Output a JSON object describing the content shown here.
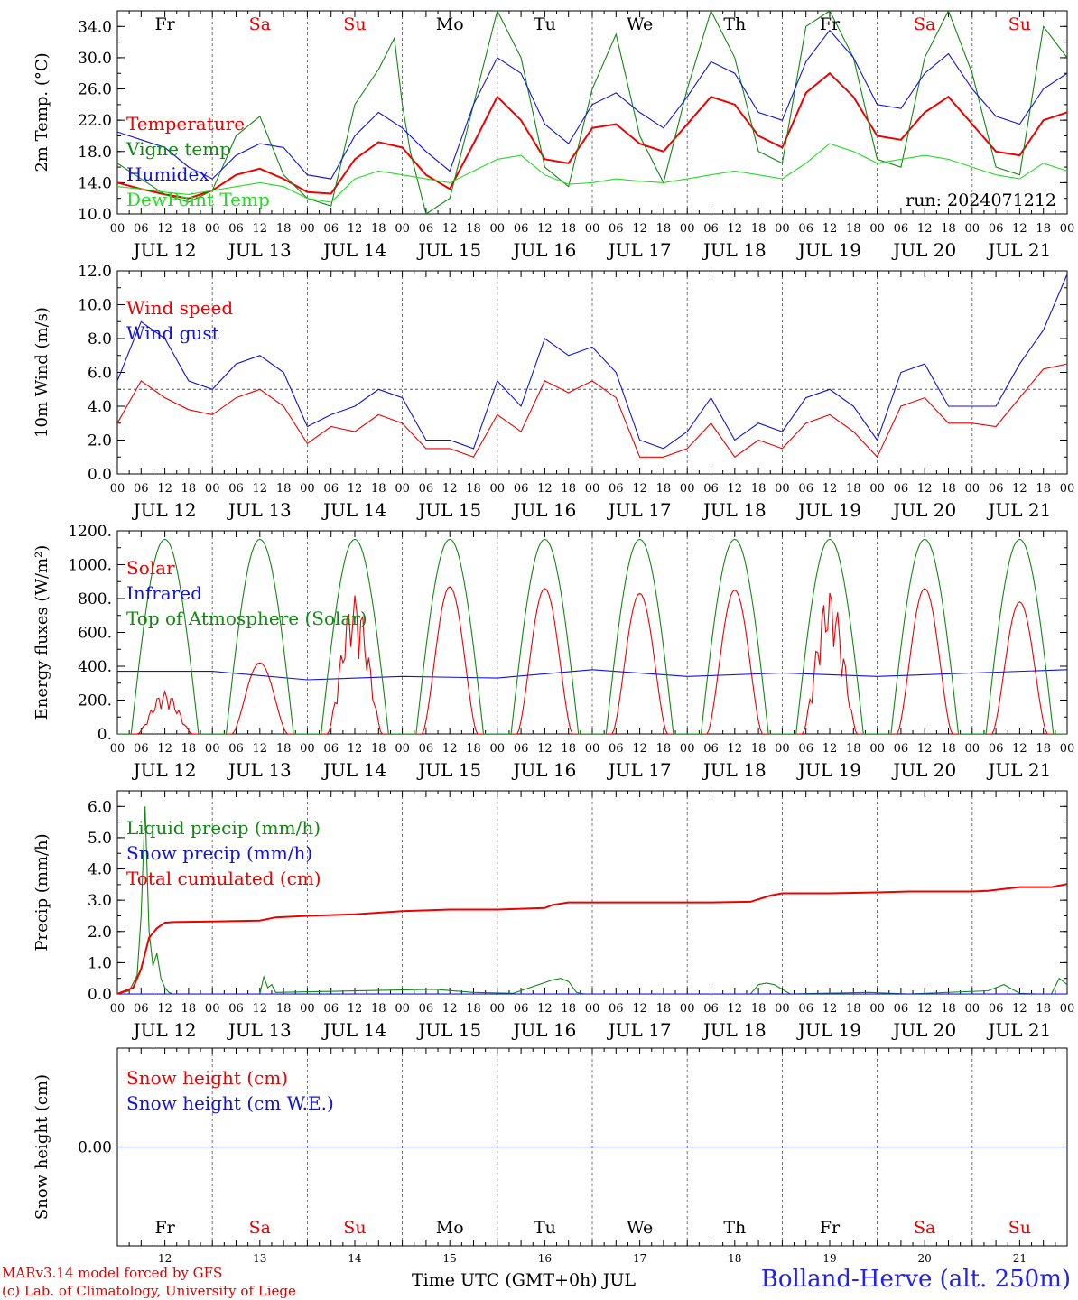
{
  "run_label": "run: 2024071212",
  "footer": {
    "credit_line1": "MARv3.14 model forced by GFS",
    "credit_line2": "(c) Lab. of Climatology, University of Liege",
    "x_title": "Time UTC (GMT+0h) JUL",
    "station": "Bolland-Herve (alt. 250m)"
  },
  "days": [
    {
      "weekday": "Fr",
      "weekend": false,
      "date": "JUL 12",
      "num": "12"
    },
    {
      "weekday": "Sa",
      "weekend": true,
      "date": "JUL 13",
      "num": "13"
    },
    {
      "weekday": "Su",
      "weekend": true,
      "date": "JUL 14",
      "num": "14"
    },
    {
      "weekday": "Mo",
      "weekend": false,
      "date": "JUL 15",
      "num": "15"
    },
    {
      "weekday": "Tu",
      "weekend": false,
      "date": "JUL 16",
      "num": "16"
    },
    {
      "weekday": "We",
      "weekend": false,
      "date": "JUL 17",
      "num": "17"
    },
    {
      "weekday": "Th",
      "weekend": false,
      "date": "JUL 18",
      "num": "18"
    },
    {
      "weekday": "Fr",
      "weekend": false,
      "date": "JUL 19",
      "num": "19"
    },
    {
      "weekday": "Sa",
      "weekend": true,
      "date": "JUL 20",
      "num": "20"
    },
    {
      "weekday": "Su",
      "weekend": true,
      "date": "JUL 21",
      "num": "21"
    }
  ],
  "hour_ticks": [
    "00",
    "06",
    "12",
    "18"
  ],
  "colors": {
    "red": "#ee0000",
    "green": "#118811",
    "blue": "#1111dd",
    "lightgreen": "#22dd22",
    "purple": "#882288"
  },
  "chart_data": [
    {
      "type": "line",
      "ylabel": "2m Temp. (°C)",
      "ylim": [
        10,
        36
      ],
      "yticks": [
        10,
        14,
        18,
        22,
        26,
        30,
        34
      ],
      "ytick_labels": [
        "10.0",
        "14.0",
        "18.0",
        "22.0",
        "26.0",
        "30.0",
        "34.0"
      ],
      "x_unit": "hours since 2024-07-12 00 UTC",
      "xlim": [
        0,
        240
      ],
      "series": [
        {
          "name": "Temperature",
          "color": "#ee0000",
          "x": [
            0,
            6,
            12,
            18,
            24,
            30,
            36,
            42,
            48,
            54,
            60,
            66,
            72,
            78,
            84,
            90,
            96,
            102,
            108,
            114,
            120,
            126,
            132,
            138,
            144,
            150,
            156,
            162,
            168,
            174,
            180,
            186,
            192,
            198,
            204,
            210,
            216,
            222,
            228,
            234,
            240
          ],
          "y": [
            14.0,
            13.2,
            12.5,
            12.0,
            13.0,
            15.0,
            15.8,
            14.5,
            12.8,
            12.6,
            17.0,
            19.2,
            18.5,
            15.0,
            13.2,
            19.0,
            25.0,
            22.0,
            17.0,
            16.5,
            21.0,
            21.5,
            19.0,
            18.0,
            21.5,
            25.0,
            24.0,
            20.0,
            18.5,
            25.5,
            28.0,
            25.0,
            20.0,
            19.5,
            23.0,
            25.0,
            21.5,
            18.0,
            17.5,
            22.0,
            23.0
          ]
        },
        {
          "name": "Vigne temp",
          "color": "#118811",
          "x": [
            0,
            6,
            12,
            18,
            24,
            30,
            36,
            42,
            48,
            54,
            60,
            66,
            70,
            72,
            74,
            78,
            84,
            90,
            96,
            102,
            108,
            114,
            120,
            126,
            132,
            138,
            144,
            150,
            156,
            162,
            168,
            174,
            180,
            186,
            192,
            198,
            204,
            210,
            216,
            222,
            228,
            234,
            240
          ],
          "y": [
            16.5,
            14.5,
            12.5,
            11.5,
            13.0,
            20.0,
            22.5,
            15.0,
            12.0,
            11.0,
            24.0,
            28.5,
            32.5,
            24.0,
            18.0,
            10.0,
            12.0,
            24.0,
            36.0,
            30.0,
            16.0,
            13.5,
            26.0,
            33.0,
            20.0,
            14.0,
            26.0,
            36.0,
            30.0,
            18.0,
            16.5,
            34.0,
            36.0,
            30.0,
            17.0,
            16.0,
            30.0,
            36.0,
            28.0,
            16.0,
            15.0,
            34.0,
            30.0
          ]
        },
        {
          "name": "Humidex",
          "color": "#1111dd",
          "x": [
            0,
            6,
            12,
            18,
            24,
            30,
            36,
            42,
            48,
            54,
            60,
            66,
            72,
            78,
            84,
            90,
            96,
            102,
            108,
            114,
            120,
            126,
            132,
            138,
            144,
            150,
            156,
            162,
            168,
            174,
            180,
            186,
            192,
            198,
            204,
            210,
            216,
            222,
            228,
            234,
            240
          ],
          "y": [
            20.5,
            19.5,
            18.5,
            16.0,
            14.5,
            17.5,
            19.0,
            18.5,
            15.0,
            14.5,
            20.0,
            23.0,
            21.0,
            18.0,
            15.5,
            24.0,
            30.0,
            28.0,
            21.5,
            19.0,
            24.0,
            25.5,
            23.0,
            21.0,
            25.0,
            29.5,
            28.0,
            23.0,
            22.0,
            29.5,
            33.5,
            30.0,
            24.0,
            23.5,
            28.0,
            30.5,
            26.0,
            22.5,
            21.5,
            26.0,
            28.0
          ]
        },
        {
          "name": "DewPoint Temp",
          "color": "#22dd22",
          "x": [
            0,
            6,
            12,
            18,
            24,
            30,
            36,
            42,
            48,
            54,
            60,
            66,
            72,
            78,
            84,
            90,
            96,
            102,
            108,
            114,
            120,
            126,
            132,
            138,
            144,
            150,
            156,
            162,
            168,
            174,
            180,
            186,
            192,
            198,
            204,
            210,
            216,
            222,
            228,
            234,
            240
          ],
          "y": [
            13.5,
            13.2,
            12.8,
            12.5,
            13.0,
            13.5,
            14.0,
            13.5,
            12.0,
            11.5,
            14.5,
            15.5,
            15.0,
            14.5,
            14.0,
            15.5,
            17.0,
            17.5,
            15.0,
            13.8,
            14.0,
            14.5,
            14.2,
            14.0,
            14.5,
            15.0,
            15.5,
            15.0,
            14.5,
            16.5,
            19.0,
            18.0,
            16.5,
            17.0,
            17.5,
            17.0,
            16.0,
            15.0,
            14.5,
            16.5,
            15.5
          ]
        }
      ]
    },
    {
      "type": "line",
      "ylabel": "10m Wind (m/s)",
      "ylim": [
        0,
        12
      ],
      "yticks": [
        0,
        2,
        4,
        6,
        8,
        10,
        12
      ],
      "ytick_labels": [
        "0.0",
        "2.0",
        "4.0",
        "6.0",
        "8.0",
        "10.0",
        "12.0"
      ],
      "reference_line": 5.0,
      "x_unit": "hours since 2024-07-12 00 UTC",
      "xlim": [
        0,
        240
      ],
      "series": [
        {
          "name": "Wind speed",
          "color": "#ee0000",
          "x": [
            0,
            6,
            12,
            18,
            24,
            30,
            36,
            42,
            48,
            54,
            60,
            66,
            72,
            78,
            84,
            90,
            96,
            102,
            108,
            114,
            120,
            126,
            132,
            138,
            144,
            150,
            156,
            162,
            168,
            174,
            180,
            186,
            192,
            198,
            204,
            210,
            216,
            222,
            228,
            234,
            240
          ],
          "y": [
            3.0,
            5.5,
            4.5,
            3.8,
            3.5,
            4.5,
            5.0,
            4.0,
            1.8,
            2.8,
            2.5,
            3.5,
            3.0,
            1.5,
            1.5,
            1.0,
            3.5,
            2.5,
            5.5,
            4.8,
            5.5,
            4.5,
            1.0,
            1.0,
            1.5,
            3.0,
            1.0,
            2.0,
            1.5,
            3.0,
            3.5,
            2.5,
            1.0,
            4.0,
            4.5,
            3.0,
            3.0,
            2.8,
            4.5,
            6.2,
            6.5
          ]
        },
        {
          "name": "Wind gust",
          "color": "#1111dd",
          "x": [
            0,
            6,
            12,
            18,
            24,
            30,
            36,
            42,
            48,
            54,
            60,
            66,
            72,
            78,
            84,
            90,
            96,
            102,
            108,
            114,
            120,
            126,
            132,
            138,
            144,
            150,
            156,
            162,
            168,
            174,
            180,
            186,
            192,
            198,
            204,
            210,
            216,
            222,
            228,
            234,
            240
          ],
          "y": [
            5.5,
            9.0,
            8.0,
            5.5,
            5.0,
            6.5,
            7.0,
            6.0,
            2.8,
            3.5,
            4.0,
            5.0,
            4.5,
            2.0,
            2.0,
            1.5,
            5.5,
            4.0,
            8.0,
            7.0,
            7.5,
            6.0,
            2.0,
            1.5,
            2.5,
            4.5,
            2.0,
            3.0,
            2.5,
            4.5,
            5.0,
            4.0,
            2.0,
            6.0,
            6.5,
            4.0,
            4.0,
            4.0,
            6.5,
            8.5,
            11.8
          ]
        }
      ]
    },
    {
      "type": "line",
      "ylabel": "Energy fluxes (W/m²)",
      "ylim": [
        0,
        1200
      ],
      "yticks": [
        0,
        200,
        400,
        600,
        800,
        1000,
        1200
      ],
      "ytick_labels": [
        "0.",
        "200.",
        "400.",
        "600.",
        "800.",
        "1000.",
        "1200."
      ],
      "x_unit": "hours since 2024-07-12 00 UTC",
      "xlim": [
        0,
        240
      ],
      "series": [
        {
          "name": "Solar",
          "color": "#ee0000",
          "daily_peak_wm2": [
            250,
            420,
            820,
            870,
            860,
            830,
            850,
            850,
            860,
            780
          ]
        },
        {
          "name": "Infrared",
          "color": "#1111dd",
          "x": [
            0,
            24,
            48,
            72,
            96,
            120,
            144,
            168,
            192,
            216,
            240
          ],
          "y": [
            370,
            370,
            320,
            340,
            330,
            380,
            340,
            360,
            340,
            360,
            380
          ]
        },
        {
          "name": "Top of Atmosphere (Solar)",
          "color": "#118811",
          "daily_peak_wm2": 1150,
          "daylight_hours": [
            3.5,
            20.5
          ]
        }
      ]
    },
    {
      "type": "line",
      "ylabel": "Precip (mm/h)",
      "ylim": [
        0,
        6.5
      ],
      "yticks": [
        0,
        1,
        2,
        3,
        4,
        5,
        6
      ],
      "ytick_labels": [
        "0.0",
        "1.0",
        "2.0",
        "3.0",
        "4.0",
        "5.0",
        "6.0"
      ],
      "x_unit": "hours since 2024-07-12 00 UTC",
      "xlim": [
        0,
        240
      ],
      "series": [
        {
          "name": "Liquid precip (mm/h)",
          "color": "#118811",
          "x": [
            0,
            3,
            5,
            6,
            7,
            8,
            9,
            10,
            11,
            12,
            13,
            14,
            36,
            37,
            38,
            39,
            40,
            80,
            90,
            100,
            110,
            112,
            114,
            116,
            118,
            122,
            150,
            160,
            162,
            164,
            166,
            170,
            190,
            200,
            220,
            224,
            228,
            232,
            236,
            238,
            240
          ],
          "y": [
            0,
            0.1,
            0.6,
            2.5,
            6.0,
            2.0,
            0.9,
            1.3,
            0.5,
            0.2,
            0.05,
            0,
            0,
            0.55,
            0.2,
            0.3,
            0.05,
            0.15,
            0.05,
            0.02,
            0.45,
            0.5,
            0.4,
            0.05,
            0,
            0,
            0,
            0,
            0.3,
            0.35,
            0.3,
            0,
            0.05,
            0,
            0.1,
            0.3,
            0.02,
            0,
            0,
            0.5,
            0.3
          ]
        },
        {
          "name": "Snow precip (mm/h)",
          "color": "#1111dd",
          "x": [
            0,
            240
          ],
          "y": [
            0,
            0
          ]
        },
        {
          "name": "Total cumulated (cm)",
          "color": "#ee0000",
          "x": [
            0,
            4,
            6,
            8,
            10,
            12,
            14,
            24,
            36,
            40,
            48,
            60,
            72,
            84,
            96,
            108,
            110,
            114,
            120,
            144,
            150,
            160,
            165,
            168,
            180,
            192,
            200,
            216,
            220,
            228,
            236,
            240
          ],
          "y": [
            0,
            0.2,
            0.8,
            1.8,
            2.1,
            2.28,
            2.3,
            2.32,
            2.35,
            2.45,
            2.5,
            2.55,
            2.65,
            2.7,
            2.7,
            2.75,
            2.85,
            2.93,
            2.93,
            2.93,
            2.93,
            2.95,
            3.15,
            3.22,
            3.22,
            3.25,
            3.28,
            3.28,
            3.3,
            3.42,
            3.42,
            3.52
          ]
        }
      ]
    },
    {
      "type": "line",
      "ylabel": "Snow height (cm)",
      "ylim": [
        -1,
        1
      ],
      "yticks": [
        0
      ],
      "ytick_labels": [
        "0.00"
      ],
      "x_unit": "hours since 2024-07-12 00 UTC",
      "xlim": [
        0,
        240
      ],
      "series": [
        {
          "name": "Snow height (cm)",
          "color": "#ee0000",
          "x": [
            0,
            240
          ],
          "y": [
            0,
            0
          ]
        },
        {
          "name": "Snow height (cm W.E.)",
          "color": "#1111dd",
          "x": [
            0,
            240
          ],
          "y": [
            0,
            0
          ]
        }
      ]
    }
  ]
}
